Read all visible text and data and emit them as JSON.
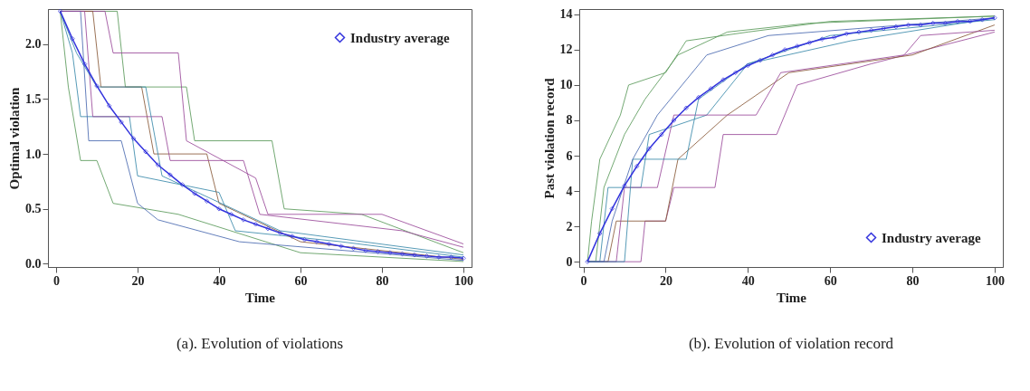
{
  "chart_data": [
    {
      "type": "line",
      "title": "(a). Evolution of violations",
      "xlabel": "Time",
      "ylabel": "Optimal violation",
      "xlim": [
        -2,
        102
      ],
      "ylim": [
        -0.03,
        2.32
      ],
      "xticks": [
        0,
        20,
        40,
        60,
        80,
        100
      ],
      "yticks": [
        {
          "value": 0,
          "label": "0.0"
        },
        0.5,
        {
          "value": 1,
          "label": "1.0"
        },
        1.5,
        {
          "value": 2,
          "label": "2.0"
        }
      ],
      "legend": "top right",
      "series": [
        {
          "color": "#5a9a5a",
          "x": [
            1,
            15,
            17,
            32,
            34,
            53,
            56,
            75,
            100
          ],
          "values": [
            2.3,
            2.3,
            1.61,
            1.61,
            1.12,
            1.12,
            0.5,
            0.45,
            0.1
          ]
        },
        {
          "color": "#9a4a9a",
          "x": [
            1,
            12,
            14,
            30,
            32,
            49,
            52,
            80,
            100
          ],
          "values": [
            2.3,
            2.3,
            1.92,
            1.92,
            1.12,
            0.78,
            0.45,
            0.45,
            0.18
          ]
        },
        {
          "color": "#3a8aaa",
          "x": [
            1,
            4,
            6,
            18,
            20,
            40,
            44,
            70,
            100
          ],
          "values": [
            2.3,
            1.92,
            1.34,
            1.34,
            0.8,
            0.65,
            0.3,
            0.2,
            0.06
          ]
        },
        {
          "color": "#8a5a3a",
          "x": [
            1,
            9,
            11,
            21,
            24,
            37,
            40,
            60,
            100
          ],
          "values": [
            2.3,
            2.3,
            1.61,
            1.61,
            1.0,
            1.0,
            0.55,
            0.2,
            0.04
          ]
        },
        {
          "color": "#5a9a5a",
          "x": [
            1,
            3,
            6,
            10,
            14,
            30,
            60,
            100
          ],
          "values": [
            2.3,
            1.61,
            0.94,
            0.94,
            0.55,
            0.45,
            0.1,
            0.02
          ]
        },
        {
          "color": "#4a6ab0",
          "x": [
            1,
            6,
            8,
            16,
            20,
            25,
            45,
            100
          ],
          "values": [
            2.3,
            2.3,
            1.12,
            1.12,
            0.55,
            0.4,
            0.2,
            0.03
          ]
        },
        {
          "color": "#9a4a9a",
          "x": [
            1,
            7,
            9,
            26,
            28,
            46,
            50,
            85,
            100
          ],
          "values": [
            2.3,
            2.3,
            1.34,
            1.34,
            0.94,
            0.94,
            0.45,
            0.3,
            0.15
          ]
        },
        {
          "color": "#3a8aaa",
          "x": [
            1,
            5,
            10,
            22,
            26,
            55,
            100
          ],
          "values": [
            2.3,
            1.92,
            1.61,
            1.61,
            0.8,
            0.3,
            0.08
          ]
        },
        {
          "name": "Industry average",
          "color": "#3333dd",
          "marker": "diamond",
          "x": [
            1,
            4,
            7,
            10,
            13,
            16,
            19,
            22,
            25,
            28,
            31,
            34,
            37,
            40,
            43,
            46,
            49,
            52,
            55,
            58,
            61,
            64,
            67,
            70,
            73,
            76,
            79,
            82,
            85,
            88,
            91,
            94,
            97,
            100
          ],
          "values": [
            2.3,
            2.05,
            1.82,
            1.62,
            1.44,
            1.29,
            1.14,
            1.02,
            0.9,
            0.81,
            0.72,
            0.64,
            0.57,
            0.5,
            0.45,
            0.4,
            0.36,
            0.32,
            0.28,
            0.25,
            0.22,
            0.2,
            0.18,
            0.16,
            0.14,
            0.12,
            0.11,
            0.1,
            0.09,
            0.08,
            0.07,
            0.06,
            0.06,
            0.05
          ]
        }
      ]
    },
    {
      "type": "line",
      "title": "(b). Evolution of violation record",
      "xlabel": "Time",
      "ylabel": "Past violation record",
      "xlim": [
        -1,
        102
      ],
      "ylim": [
        -0.3,
        14.3
      ],
      "xticks": [
        0,
        20,
        40,
        60,
        80,
        100
      ],
      "yticks": [
        0,
        2,
        4,
        6,
        8,
        10,
        12,
        14
      ],
      "legend": "bottom right",
      "series": [
        {
          "color": "#5a9a5a",
          "x": [
            1,
            2,
            4,
            9,
            11,
            20,
            25,
            40,
            60,
            100
          ],
          "values": [
            0,
            2.3,
            5.8,
            8.3,
            10,
            10.7,
            12.5,
            13,
            13.6,
            13.9
          ]
        },
        {
          "color": "#9a4a9a",
          "x": [
            1,
            14,
            15,
            20,
            22,
            32,
            34,
            47,
            52,
            70,
            100
          ],
          "values": [
            0,
            0,
            2.3,
            2.3,
            4.2,
            4.2,
            7.2,
            7.2,
            10,
            11.2,
            13
          ]
        },
        {
          "color": "#3a8aaa",
          "x": [
            1,
            4,
            6,
            14,
            16,
            30,
            40,
            65,
            100
          ],
          "values": [
            0,
            0,
            4.2,
            4.2,
            7.2,
            8.3,
            11.2,
            12.5,
            13.8
          ]
        },
        {
          "color": "#8a5a3a",
          "x": [
            1,
            6,
            8,
            20,
            23,
            35,
            50,
            80,
            100
          ],
          "values": [
            0,
            0,
            2.3,
            2.3,
            5.8,
            8.3,
            10.7,
            11.7,
            13.4
          ]
        },
        {
          "color": "#5a9a5a",
          "x": [
            1,
            3,
            5,
            10,
            15,
            23,
            35,
            55,
            100
          ],
          "values": [
            0,
            0,
            4.2,
            7.2,
            9.2,
            11.7,
            13,
            13.5,
            13.9
          ]
        },
        {
          "color": "#9a4a9a",
          "x": [
            1,
            8,
            10,
            18,
            22,
            42,
            48,
            78,
            82,
            100
          ],
          "values": [
            0,
            0,
            4.2,
            4.2,
            8.3,
            8.3,
            10.7,
            11.7,
            12.8,
            13.1
          ]
        },
        {
          "color": "#3a8aaa",
          "x": [
            1,
            10,
            12,
            25,
            28,
            40,
            60,
            100
          ],
          "values": [
            0,
            0,
            5.8,
            5.8,
            9.2,
            11.2,
            12.8,
            13.7
          ]
        },
        {
          "color": "#4a6ab0",
          "x": [
            1,
            5,
            7,
            12,
            18,
            30,
            45,
            100
          ],
          "values": [
            0,
            0,
            2.3,
            5.8,
            8.3,
            11.7,
            12.8,
            13.8
          ]
        },
        {
          "name": "Industry average",
          "color": "#3333dd",
          "marker": "diamond",
          "x": [
            1,
            4,
            7,
            10,
            13,
            16,
            19,
            22,
            25,
            28,
            31,
            34,
            37,
            40,
            43,
            46,
            49,
            52,
            55,
            58,
            61,
            64,
            67,
            70,
            73,
            76,
            79,
            82,
            85,
            88,
            91,
            94,
            97,
            100
          ],
          "values": [
            0,
            1.6,
            3.0,
            4.3,
            5.4,
            6.4,
            7.2,
            8.0,
            8.7,
            9.3,
            9.8,
            10.3,
            10.7,
            11.1,
            11.4,
            11.7,
            12.0,
            12.2,
            12.4,
            12.6,
            12.7,
            12.9,
            13.0,
            13.1,
            13.2,
            13.3,
            13.4,
            13.4,
            13.5,
            13.5,
            13.6,
            13.6,
            13.7,
            13.8
          ]
        }
      ]
    }
  ]
}
